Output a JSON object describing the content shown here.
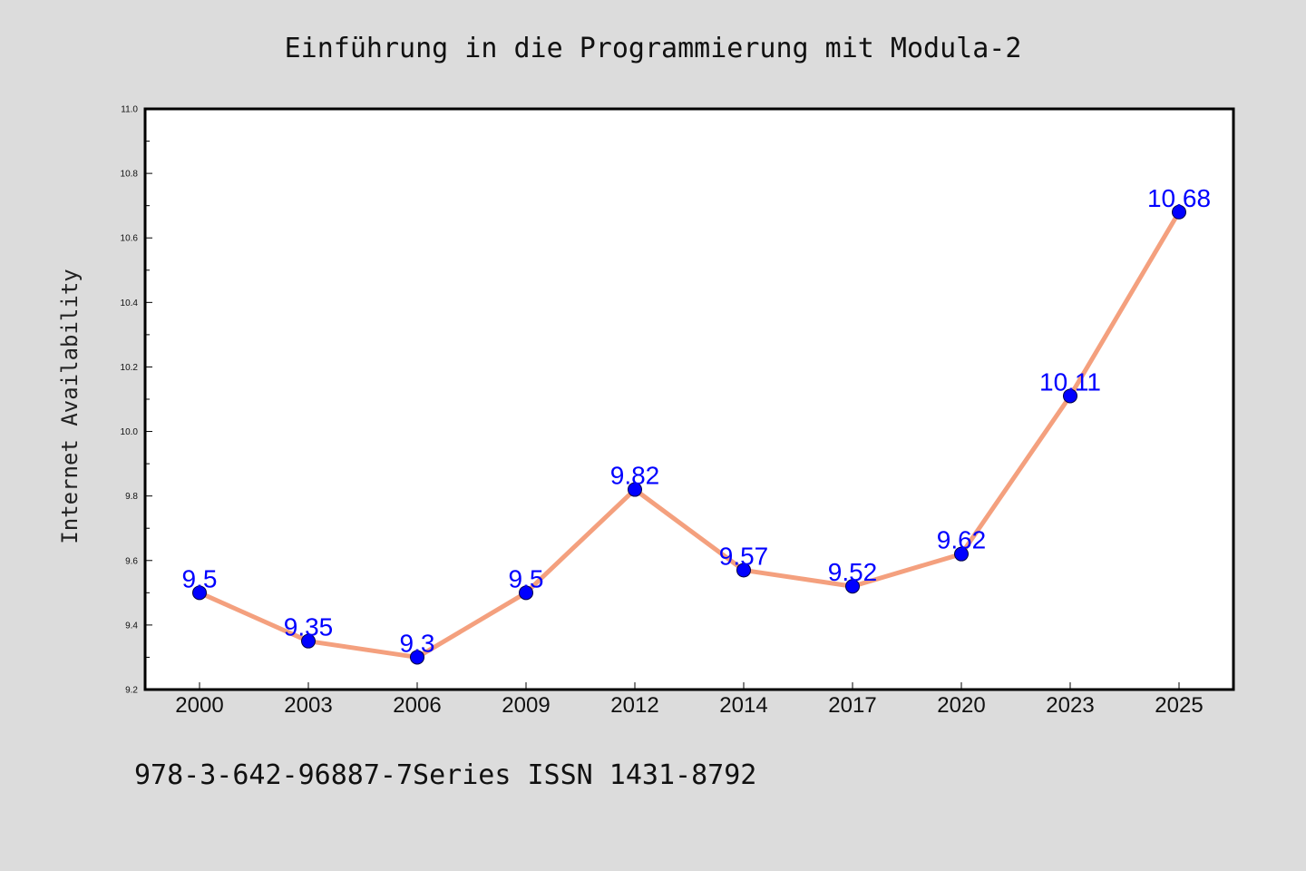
{
  "chart_data": {
    "type": "line",
    "title": "Einführung in die Programmierung mit Modula-2",
    "xlabel": "",
    "ylabel": "Internet Availability",
    "categories": [
      "2000",
      "2003",
      "2006",
      "2009",
      "2012",
      "2014",
      "2017",
      "2020",
      "2023",
      "2025"
    ],
    "series": [
      {
        "values": [
          9.5,
          9.35,
          9.3,
          9.5,
          9.82,
          9.57,
          9.52,
          9.62,
          10.11,
          10.68
        ],
        "line_color": "#f4a07e",
        "marker_color": "#0000ff"
      }
    ],
    "data_labels": [
      "9.5",
      "9.35",
      "9.3",
      "9.5",
      "9.82",
      "9.57",
      "9.52",
      "9.62",
      "10.11",
      "10.68"
    ],
    "ylim": [
      9.2,
      11.0
    ],
    "yticks": [
      "9.2",
      "9.4",
      "9.6",
      "9.8",
      "10.0",
      "10.2",
      "10.4",
      "10.6",
      "10.8",
      "11.0"
    ],
    "grid": false,
    "legend": "none"
  },
  "footer": {
    "text": "978-3-642-96887-7Series ISSN 1431-8792"
  },
  "colors": {
    "background": "#dcdcdc",
    "plot_background": "#ffffff",
    "label_color": "#0000ff"
  }
}
